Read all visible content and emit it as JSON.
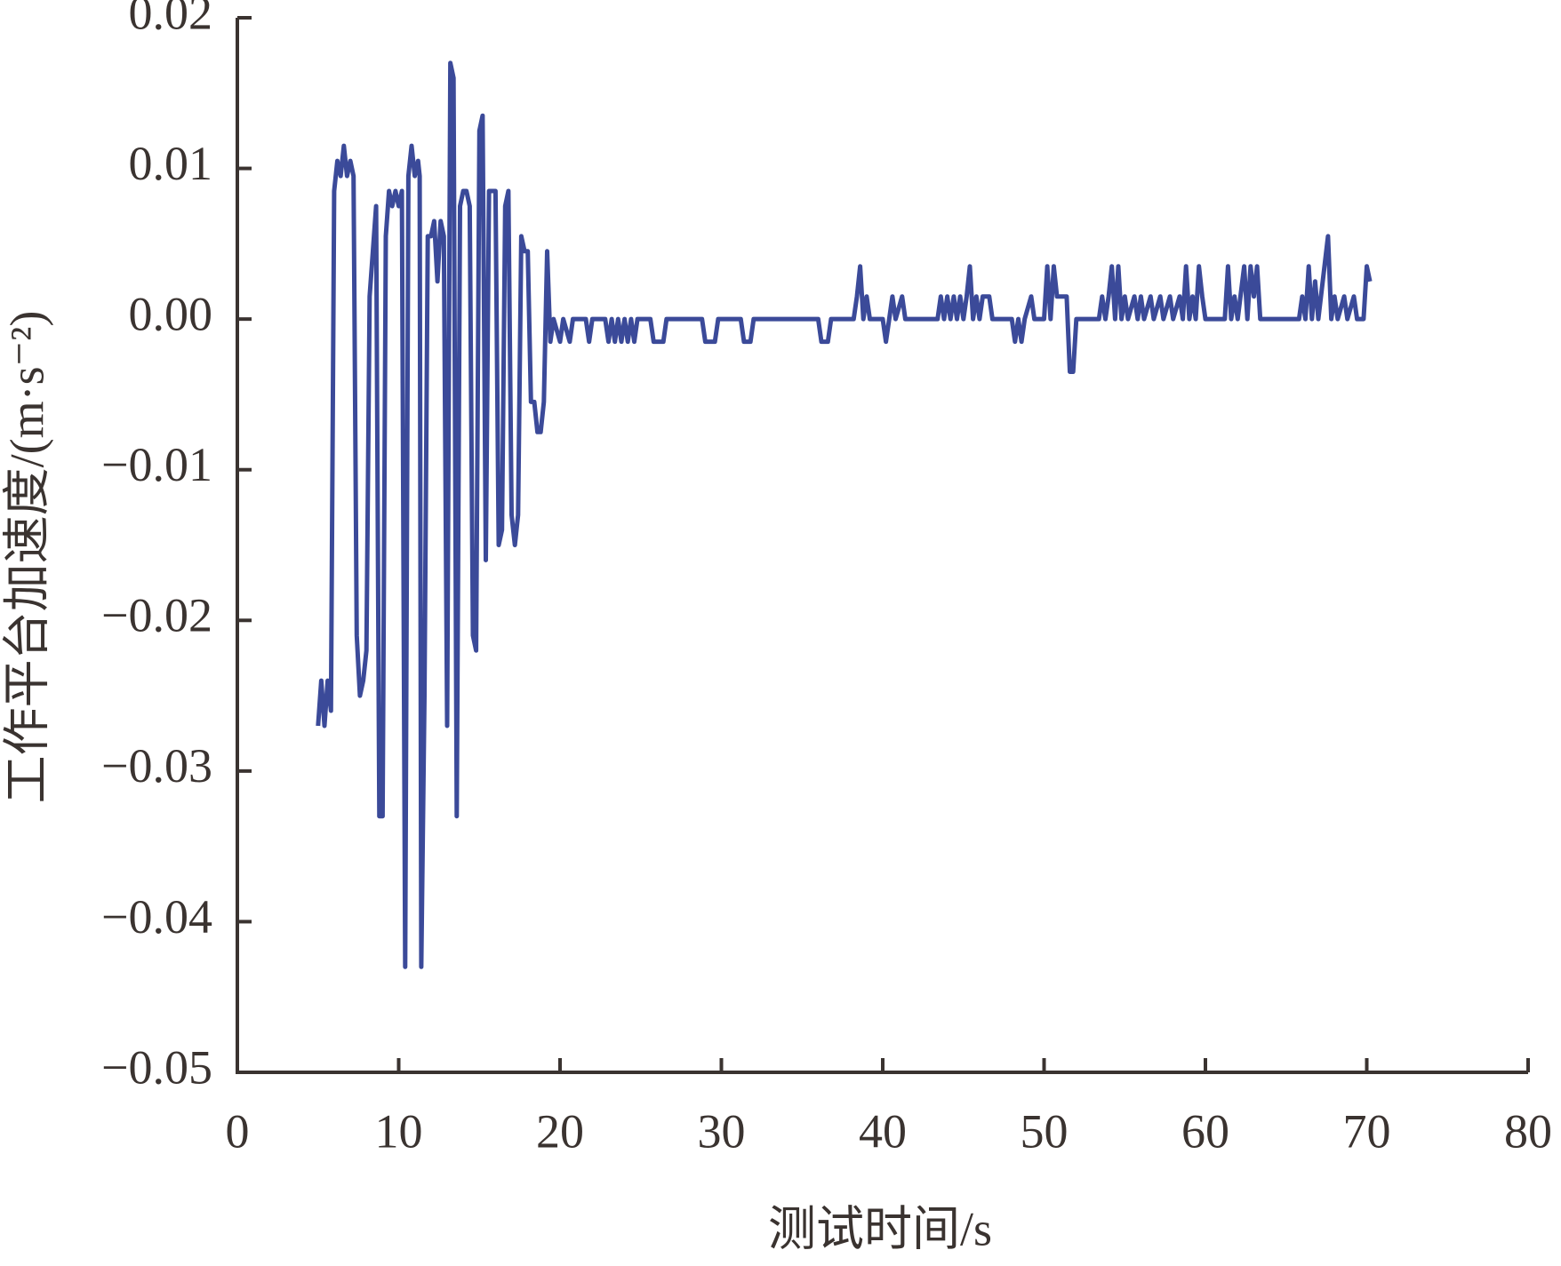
{
  "chart_data": {
    "type": "line",
    "xlabel": "测试时间/s",
    "ylabel": "工作平台加速度/(m·s⁻²)",
    "xlim": [
      0,
      80
    ],
    "xticks": [
      0,
      10,
      20,
      30,
      40,
      50,
      60,
      70,
      80
    ],
    "ylim": [
      -0.05,
      0.02
    ],
    "yticks": [
      {
        "value": -0.05,
        "label": "−0.05"
      },
      {
        "value": -0.04,
        "label": "−0.04"
      },
      {
        "value": -0.03,
        "label": "−0.03"
      },
      {
        "value": -0.02,
        "label": "−0.02"
      },
      {
        "value": -0.01,
        "label": "−0.01"
      },
      {
        "value": 0,
        "label": "0.00"
      },
      0.01,
      0.02
    ],
    "grid": false,
    "series": [
      {
        "color": "#3b4a99",
        "x": [
          5.0,
          5.2,
          5.4,
          5.6,
          5.8,
          6.0,
          6.2,
          6.4,
          6.6,
          6.8,
          7.0,
          7.2,
          7.4,
          7.6,
          7.8,
          8.0,
          8.2,
          8.6,
          8.8,
          9.0,
          9.2,
          9.4,
          9.6,
          9.8,
          10.0,
          10.2,
          10.4,
          10.6,
          10.8,
          11.0,
          11.2,
          11.3,
          11.4,
          11.6,
          11.8,
          12.0,
          12.2,
          12.4,
          12.6,
          12.8,
          13.0,
          13.2,
          13.4,
          13.6,
          13.8,
          14.0,
          14.2,
          14.4,
          14.6,
          14.8,
          15.0,
          15.2,
          15.4,
          15.6,
          15.8,
          16.0,
          16.2,
          16.4,
          16.6,
          16.8,
          17.0,
          17.2,
          17.4,
          17.6,
          17.8,
          18.0,
          18.2,
          18.4,
          18.6,
          18.8,
          19.0,
          19.2,
          19.4,
          19.6,
          20.0,
          20.2,
          20.6,
          20.8,
          21.6,
          21.8,
          22.0,
          22.8,
          23.0,
          23.2,
          23.4,
          23.6,
          23.8,
          24.0,
          24.2,
          24.4,
          24.6,
          24.8,
          25.6,
          25.8,
          26.4,
          26.6,
          28.8,
          29.0,
          29.6,
          29.8,
          31.2,
          31.4,
          31.8,
          32.0,
          36.0,
          36.2,
          36.6,
          36.8,
          38.2,
          38.4,
          38.6,
          38.8,
          39.0,
          39.2,
          40.0,
          40.2,
          40.4,
          40.6,
          40.8,
          41.2,
          41.4,
          43.4,
          43.6,
          43.8,
          44.0,
          44.2,
          44.4,
          44.6,
          44.8,
          45.0,
          45.2,
          45.4,
          45.6,
          45.8,
          46.0,
          46.2,
          46.6,
          46.8,
          48.0,
          48.2,
          48.4,
          48.6,
          48.8,
          49.2,
          49.4,
          50.0,
          50.2,
          50.4,
          50.6,
          50.8,
          51.4,
          51.6,
          51.8,
          52.0,
          53.4,
          53.6,
          53.8,
          54.0,
          54.2,
          54.4,
          54.6,
          54.8,
          55.0,
          55.2,
          55.6,
          55.8,
          56.0,
          56.2,
          56.6,
          56.8,
          57.2,
          57.4,
          57.8,
          58.0,
          58.4,
          58.6,
          58.8,
          59.0,
          59.2,
          59.4,
          59.6,
          59.8,
          60.0,
          61.2,
          61.4,
          61.6,
          61.8,
          62.0,
          62.4,
          62.6,
          62.8,
          63.0,
          63.2,
          63.4,
          65.8,
          66.0,
          66.2,
          66.4,
          66.6,
          66.8,
          67.0,
          67.6,
          67.8,
          68.0,
          68.2,
          68.6,
          68.8,
          69.2,
          69.4,
          69.8,
          70.0,
          70.2
        ],
        "values": [
          -0.027,
          -0.024,
          -0.027,
          -0.024,
          -0.026,
          0.0085,
          0.0105,
          0.0095,
          0.0115,
          0.0095,
          0.0105,
          0.0095,
          -0.021,
          -0.025,
          -0.024,
          -0.022,
          0.0015,
          0.0075,
          -0.033,
          -0.033,
          0.0055,
          0.0085,
          0.0075,
          0.0085,
          0.0075,
          0.0085,
          -0.043,
          0.0095,
          0.0115,
          0.0095,
          0.0105,
          0.0095,
          -0.043,
          -0.025,
          0.0055,
          0.0055,
          0.0065,
          0.0025,
          0.0065,
          0.0055,
          -0.027,
          0.017,
          0.016,
          -0.033,
          0.0075,
          0.0085,
          0.0085,
          0.0075,
          -0.021,
          -0.022,
          0.0125,
          0.0135,
          -0.016,
          0.0085,
          0.0085,
          0.0085,
          -0.015,
          -0.014,
          0.0075,
          0.0085,
          -0.013,
          -0.015,
          -0.013,
          0.0055,
          0.0045,
          0.0045,
          -0.0055,
          -0.0055,
          -0.0075,
          -0.0075,
          -0.0055,
          0.0045,
          -0.0015,
          0,
          -0.0015,
          0,
          -0.0015,
          0,
          0,
          -0.0015,
          0,
          0,
          -0.0015,
          0,
          -0.0015,
          0,
          -0.0015,
          0,
          -0.0015,
          0,
          -0.0015,
          0,
          0,
          -0.0015,
          -0.0015,
          0,
          0,
          -0.0015,
          -0.0015,
          0,
          0,
          -0.0015,
          -0.0015,
          0,
          0,
          -0.0015,
          -0.0015,
          0,
          0,
          0.0015,
          0.0035,
          0,
          0.0015,
          0,
          0,
          -0.0015,
          0,
          0.0015,
          0,
          0.0015,
          0,
          0,
          0.0015,
          0,
          0.0015,
          0,
          0.0015,
          0,
          0.0015,
          0,
          0.0015,
          0.0035,
          0,
          0.0015,
          0,
          0.0015,
          0.0015,
          0,
          0,
          -0.0015,
          0,
          -0.0015,
          0,
          0.0015,
          0,
          0,
          0.0035,
          0,
          0.0035,
          0.0015,
          0.0015,
          -0.0035,
          -0.0035,
          0,
          0,
          0.0015,
          0,
          0.0015,
          0.0035,
          0,
          0.0035,
          0,
          0.0015,
          0,
          0.0015,
          0,
          0.0015,
          0,
          0.0015,
          0,
          0.0015,
          0,
          0.0015,
          0,
          0.0015,
          0,
          0.0035,
          0,
          0.0015,
          0,
          0.0035,
          0.0015,
          0,
          0,
          0.0035,
          0,
          0.0015,
          0,
          0.0035,
          0,
          0.0035,
          0.0015,
          0.0035,
          0,
          0,
          0.0015,
          0,
          0.0035,
          0,
          0.0025,
          0,
          0.0055,
          0,
          0.0015,
          0,
          0.0015,
          0,
          0.0015,
          0,
          0,
          0.0035,
          0.0025
        ]
      }
    ]
  }
}
